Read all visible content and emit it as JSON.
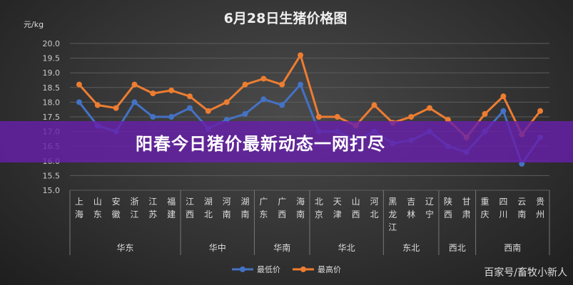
{
  "banner": "阳春今日猪价最新动态一网打尽",
  "watermark": "百家号/畜牧小新人",
  "chart_data": {
    "type": "line",
    "title": "6月28日生猪价格图",
    "ylabel": "元/kg",
    "ylim": [
      15.0,
      20.0
    ],
    "yticks": [
      "15.0",
      "15.5",
      "16.0",
      "16.5",
      "17.0",
      "17.5",
      "18.0",
      "18.5",
      "19.0",
      "19.5",
      "20.0"
    ],
    "grid": true,
    "legend": "bottom",
    "categories": [
      "上海",
      "山东",
      "安徽",
      "浙江",
      "江苏",
      "福建",
      "江西",
      "湖北",
      "河南",
      "湖南",
      "广东",
      "广西",
      "海南",
      "北京",
      "天津",
      "山西",
      "河北",
      "黑龙江",
      "吉林",
      "辽宁",
      "陕西",
      "甘肃",
      "重庆",
      "四川",
      "云南",
      "贵州"
    ],
    "groups": [
      {
        "name": "华东",
        "count": 6
      },
      {
        "name": "华中",
        "count": 4
      },
      {
        "name": "华南",
        "count": 3
      },
      {
        "name": "华北",
        "count": 4
      },
      {
        "name": "东北",
        "count": 3
      },
      {
        "name": "西北",
        "count": 2
      },
      {
        "name": "西南",
        "count": 4
      }
    ],
    "series": [
      {
        "name": "最低价",
        "color": "#4472c4",
        "values": [
          18.0,
          17.2,
          17.0,
          18.0,
          17.5,
          17.5,
          17.8,
          17.1,
          17.4,
          17.6,
          18.1,
          17.9,
          18.6,
          17.0,
          17.0,
          16.7,
          17.0,
          16.6,
          16.7,
          17.0,
          16.5,
          16.3,
          17.0,
          17.7,
          15.9,
          16.8
        ]
      },
      {
        "name": "最高价",
        "color": "#ed7d31",
        "values": [
          18.6,
          17.9,
          17.8,
          18.6,
          18.3,
          18.4,
          18.2,
          17.7,
          18.0,
          18.6,
          18.8,
          18.6,
          19.6,
          17.5,
          17.5,
          17.2,
          17.9,
          17.3,
          17.5,
          17.8,
          17.4,
          16.8,
          17.6,
          18.2,
          16.9,
          17.7
        ]
      }
    ]
  }
}
